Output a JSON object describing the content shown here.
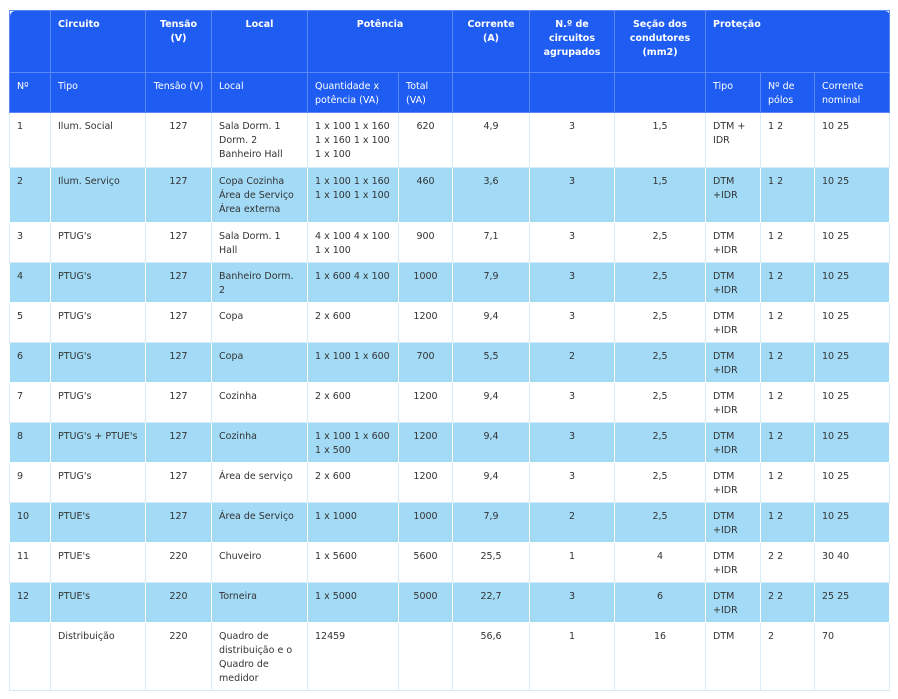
{
  "header": {
    "row1": [
      null,
      "Circuito",
      "Tensão (V)",
      "Local",
      "Potência",
      "Corrente (A)",
      "N.º de circuitos agrupados",
      "Seção dos condutores (mm2)",
      "Proteção"
    ],
    "row2": [
      "Nº",
      "Tipo",
      "Tensão (V)",
      "Local",
      "Quantidade x potência (VA)",
      "Total (VA)",
      null,
      null,
      null,
      "Tipo",
      "Nº de pólos",
      "Corrente nominal"
    ]
  },
  "table": {
    "rows": [
      [
        "1",
        "Ilum. Social",
        "127",
        "Sala Dorm. 1 Dorm. 2 Banheiro Hall",
        "1 x 100 1 x 160 1 x 160 1 x 100 1 x 100",
        "620",
        "4,9",
        "3",
        "1,5",
        "DTM + IDR",
        "1 2",
        "10 25"
      ],
      [
        "2",
        "Ilum. Serviço",
        "127",
        "Copa Cozinha Área de Serviço Área externa",
        "1 x 100 1 x 160 1 x 100 1 x 100",
        "460",
        "3,6",
        "3",
        "1,5",
        "DTM +IDR",
        "1 2",
        "10 25"
      ],
      [
        "3",
        "PTUG's",
        "127",
        "Sala Dorm. 1 Hall",
        "4 x 100 4 x 100 1 x 100",
        "900",
        "7,1",
        "3",
        "2,5",
        "DTM +IDR",
        "1 2",
        "10 25"
      ],
      [
        "4",
        "PTUG's",
        "127",
        "Banheiro Dorm. 2",
        "1 x 600 4 x 100",
        "1000",
        "7,9",
        "3",
        "2,5",
        "DTM +IDR",
        "1 2",
        "10 25"
      ],
      [
        "5",
        "PTUG's",
        "127",
        "Copa",
        "2 x 600",
        "1200",
        "9,4",
        "3",
        "2,5",
        "DTM +IDR",
        "1 2",
        "10 25"
      ],
      [
        "6",
        "PTUG's",
        "127",
        "Copa",
        "1 x 100 1 x 600",
        "700",
        "5,5",
        "2",
        "2,5",
        "DTM +IDR",
        "1 2",
        "10 25"
      ],
      [
        "7",
        "PTUG's",
        "127",
        "Cozinha",
        "2 x 600",
        "1200",
        "9,4",
        "3",
        "2,5",
        "DTM +IDR",
        "1 2",
        "10 25"
      ],
      [
        "8",
        "PTUG's + PTUE's",
        "127",
        "Cozinha",
        "1 x 100 1 x 600 1 x 500",
        "1200",
        "9,4",
        "3",
        "2,5",
        "DTM +IDR",
        "1 2",
        "10 25"
      ],
      [
        "9",
        "PTUG's",
        "127",
        "Área de serviço",
        "2 x 600",
        "1200",
        "9,4",
        "3",
        "2,5",
        "DTM +IDR",
        "1 2",
        "10 25"
      ],
      [
        "10",
        "PTUE's",
        "127",
        "Área de Serviço",
        "1 x 1000",
        "1000",
        "7,9",
        "2",
        "2,5",
        "DTM +IDR",
        "1 2",
        "10 25"
      ],
      [
        "11",
        "PTUE's",
        "220",
        "Chuveiro",
        "1 x 5600",
        "5600",
        "25,5",
        "1",
        "4",
        "DTM +IDR",
        "2 2",
        "30 40"
      ],
      [
        "12",
        "PTUE's",
        "220",
        "Torneira",
        "1 x 5000",
        "5000",
        "22,7",
        "3",
        "6",
        "DTM +IDR",
        "2 2",
        "25 25"
      ],
      [
        null,
        "Distribuição",
        "220",
        "Quadro de distribuição e o Quadro de medidor",
        "12459",
        null,
        "56,6",
        "1",
        "16",
        "DTM",
        "2",
        "70"
      ]
    ]
  }
}
